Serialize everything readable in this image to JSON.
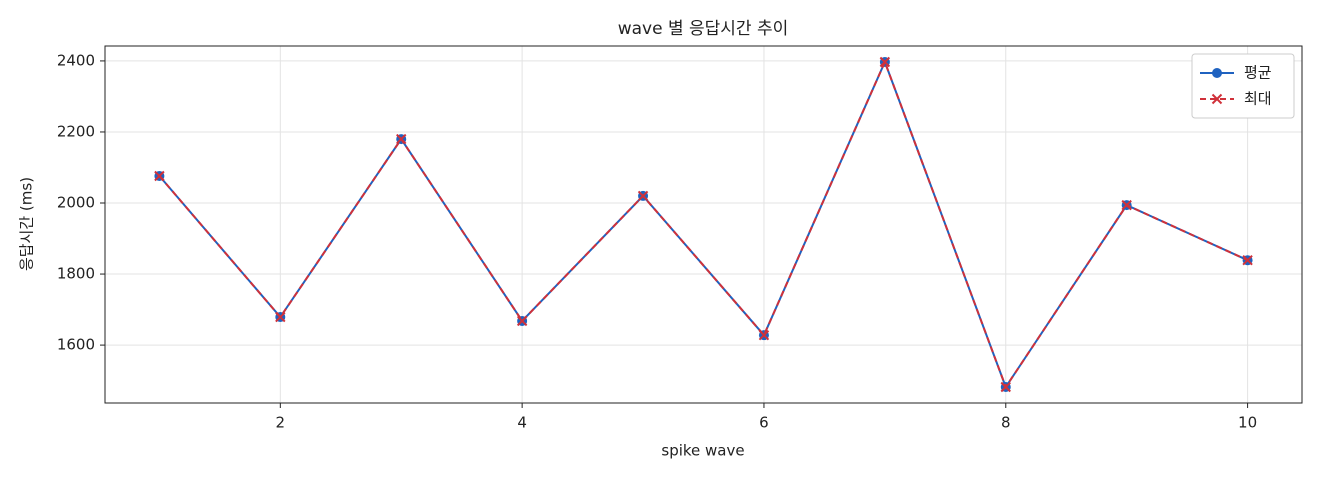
{
  "chart_data": {
    "type": "line",
    "title": "wave 별 응답시간 추이",
    "x_label": "spike wave",
    "y_label": "응답시간 (ms)",
    "x": [
      1,
      2,
      3,
      4,
      5,
      6,
      7,
      8,
      9,
      10
    ],
    "series": [
      {
        "name": "평균",
        "color": "#1f62c0",
        "marker": "circle",
        "dash": false,
        "values": [
          2076,
          1679,
          2180,
          1668,
          2020,
          1628,
          2397,
          1482,
          1994,
          1839
        ]
      },
      {
        "name": "최대",
        "color": "#d0313a",
        "marker": "x",
        "dash": true,
        "values": [
          2076,
          1679,
          2180,
          1668,
          2020,
          1628,
          2397,
          1482,
          1994,
          1839
        ]
      }
    ],
    "xlim": [
      0.55,
      10.45
    ],
    "xticks": [
      2,
      4,
      6,
      8,
      10
    ],
    "ylim": [
      1437,
      2442
    ],
    "yticks": [
      1600,
      1800,
      2000,
      2200,
      2400
    ],
    "grid": true,
    "legend": "upper-right"
  }
}
